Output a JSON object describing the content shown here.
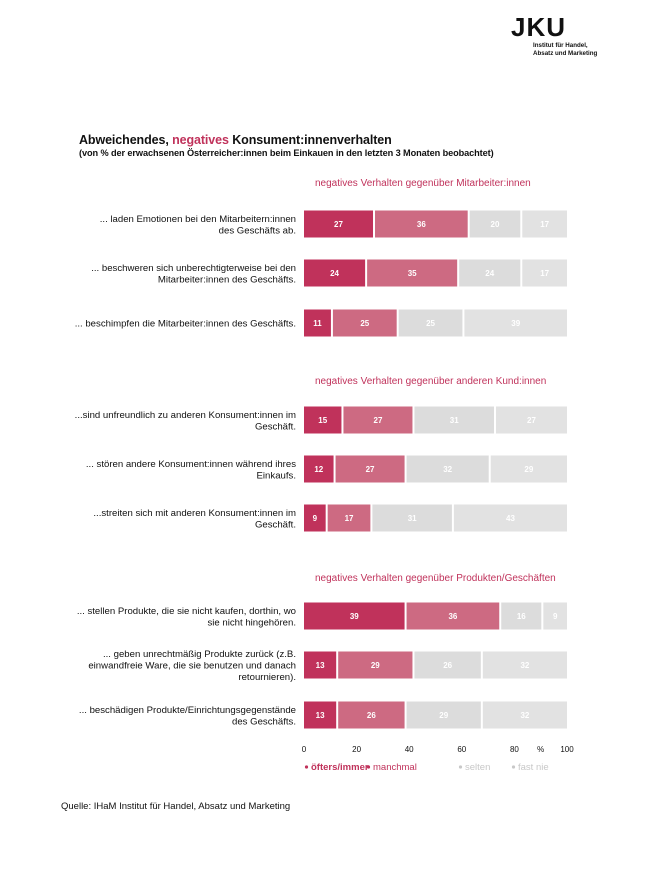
{
  "logo": {
    "mark": "JKU",
    "line1": "Institut für Handel,",
    "line2": "Absatz und Marketing"
  },
  "header": {
    "title_part1": "Abweichendes, ",
    "title_accent": "negatives",
    "title_part2": " Konsument:innenverhalten",
    "subtitle": "(von % der erwachsenen Österreicher:innen beim Einkauen in den letzten 3 Monaten beobachtet)"
  },
  "source": "Quelle: IHaM Institut für Handel, Absatz und Marketing",
  "colors": {
    "oefters": "#c0325b",
    "manchmal": "#cd6a82",
    "selten": "#dcdcdc",
    "fast_nie": "#e2e2e2",
    "accent": "#c0325b",
    "label_light": "#ffffff",
    "legend_grey": "#c8c8c8"
  },
  "chart_data": {
    "type": "bar",
    "orientation": "horizontal",
    "stacked": true,
    "xlim": [
      0,
      100
    ],
    "x_ticks": [
      "0",
      "20",
      "40",
      "60",
      "80",
      "%",
      "100"
    ],
    "legend": [
      "öfters/immer",
      "manchmal",
      "selten",
      "fast nie"
    ],
    "legend_position": "bottom",
    "groups": [
      {
        "heading": "negatives Verhalten gegenüber Mitarbeiter:innen",
        "rows": [
          {
            "label": [
              "... laden Emotionen bei den Mitarbeitern:innen",
              "des Geschäfts ab."
            ],
            "values": [
              27,
              36,
              20,
              17
            ]
          },
          {
            "label": [
              "... beschweren sich unberechtigterweise bei den",
              "Mitarbeiter:innen des Geschäfts."
            ],
            "values": [
              24,
              35,
              24,
              17
            ]
          },
          {
            "label": [
              "... beschimpfen die Mitarbeiter:innen des Geschäfts."
            ],
            "values": [
              11,
              25,
              25,
              39
            ]
          }
        ]
      },
      {
        "heading": "negatives Verhalten gegenüber anderen Kund:innen",
        "rows": [
          {
            "label": [
              "...sind unfreundlich zu anderen Konsument:innen im",
              "Geschäft."
            ],
            "values": [
              15,
              27,
              31,
              27
            ]
          },
          {
            "label": [
              "... stören andere Konsument:innen während ihres",
              "Einkaufs."
            ],
            "values": [
              12,
              27,
              32,
              29
            ]
          },
          {
            "label": [
              "...streiten sich mit anderen Konsument:innen im",
              "Geschäft."
            ],
            "values": [
              9,
              17,
              31,
              43
            ]
          }
        ]
      },
      {
        "heading": "negatives Verhalten gegenüber Produkten/Geschäften",
        "rows": [
          {
            "label": [
              "... stellen Produkte, die sie nicht kaufen, dorthin, wo",
              "sie nicht hingehören."
            ],
            "values": [
              39,
              36,
              16,
              9
            ]
          },
          {
            "label": [
              "... geben unrechtmäßig Produkte zurück (z.B.",
              "einwandfreie Ware, die sie benutzen und danach",
              "retournieren)."
            ],
            "values": [
              13,
              29,
              26,
              32
            ]
          },
          {
            "label": [
              "... beschädigen Produkte/Einrichtungsgegenstände",
              "des Geschäfts."
            ],
            "values": [
              13,
              26,
              29,
              32
            ]
          }
        ]
      }
    ]
  }
}
